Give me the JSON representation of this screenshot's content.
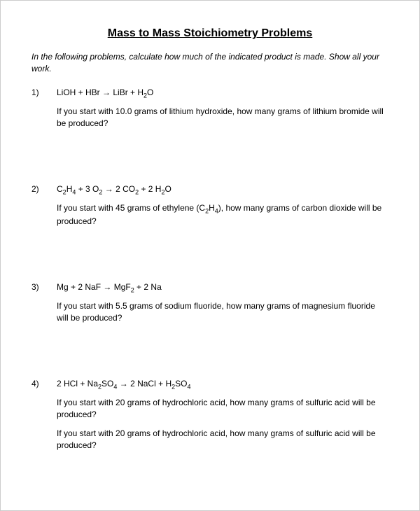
{
  "title": "Mass to Mass Stoichiometry Problems",
  "instructions": "In the following problems, calculate how much of the indicated product is made. Show all your work.",
  "problems": [
    {
      "number": "1)",
      "equation": "LiOH + HBr → LiBr + H₂O",
      "questions": [
        "If you start with 10.0 grams of lithium hydroxide, how many grams of lithium bromide will be produced?"
      ]
    },
    {
      "number": "2)",
      "equation": "C₂H₄ + 3 O₂ → 2 CO₂ + 2 H₂O",
      "questions": [
        "If you start with 45 grams of ethylene (C₂H₄), how many grams of carbon dioxide will be produced?"
      ]
    },
    {
      "number": "3)",
      "equation": "Mg + 2 NaF → MgF₂ + 2 Na",
      "questions": [
        "If you start with 5.5 grams of sodium fluoride, how many grams of magnesium fluoride will be produced?"
      ]
    },
    {
      "number": "4)",
      "equation": "2 HCl + Na₂SO₄ → 2 NaCl + H₂SO₄",
      "questions": [
        "If you start with 20 grams of hydrochloric acid, how many grams of sulfuric acid will be produced?",
        "If you start with 20 grams of hydrochloric acid, how many grams of sulfuric acid will be produced?"
      ]
    }
  ],
  "colors": {
    "text": "#000000",
    "background": "#ffffff",
    "border": "#cccccc"
  },
  "typography": {
    "title_fontsize": 16,
    "body_fontsize": 12,
    "subscript_fontsize": 9,
    "font_family": "Arial"
  }
}
